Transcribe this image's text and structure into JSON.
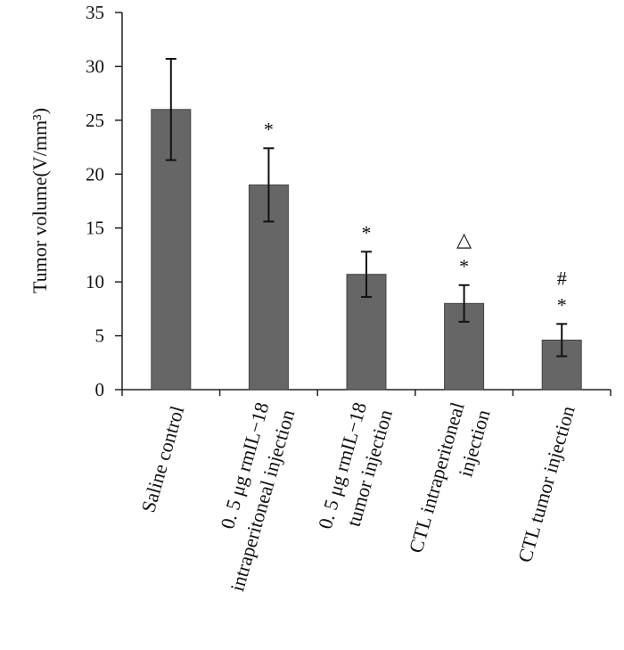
{
  "chart_data": {
    "type": "bar",
    "ylabel": "Tumor volume(V/mm³)",
    "categories": [
      [
        "Saline control"
      ],
      [
        "0. 5 μg rmIL−18",
        "intraperitoneal injection"
      ],
      [
        "0. 5 μg rmIL−18",
        "tumor injection"
      ],
      [
        "CTL intraperitoneal",
        "injection"
      ],
      [
        "CTL  tumor injection"
      ]
    ],
    "values": [
      26,
      19,
      10.7,
      8,
      4.6
    ],
    "errors": [
      4.7,
      3.4,
      2.1,
      1.7,
      1.5
    ],
    "annotations": [
      [],
      [
        "*"
      ],
      [
        "*"
      ],
      [
        "△",
        "*"
      ],
      [
        "#",
        "*"
      ]
    ],
    "color": "#666666",
    "ylim": [
      0,
      35
    ],
    "yticks": [
      0,
      5,
      10,
      15,
      20,
      25,
      30,
      35
    ]
  }
}
